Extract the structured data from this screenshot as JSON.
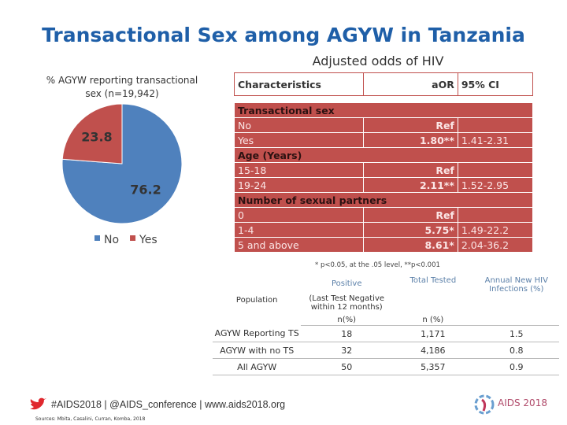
{
  "title": "Transactional Sex among AGYW in Tanzania",
  "chart_data": {
    "type": "pie",
    "title": "% AGYW reporting transactional sex (n=19,942)",
    "categories": [
      "No",
      "Yes"
    ],
    "values": [
      76.2,
      23.8
    ],
    "colors": [
      "#4f81bd",
      "#c0504d"
    ],
    "legend": "bottom"
  },
  "odds_table": {
    "title": "Adjusted odds of HIV",
    "header": [
      "Characteristics",
      "aOR",
      "95% CI"
    ],
    "sections": [
      {
        "heading": "Transactional sex",
        "rows": [
          [
            "No",
            "Ref",
            ""
          ],
          [
            "Yes",
            "1.80**",
            "1.41-2.31"
          ]
        ]
      },
      {
        "heading": "Age (Years)",
        "rows": [
          [
            "15-18",
            "Ref",
            ""
          ],
          [
            "19-24",
            "2.11**",
            "1.52-2.95"
          ]
        ]
      },
      {
        "heading": "Number of sexual partners",
        "rows": [
          [
            "0",
            "Ref",
            ""
          ],
          [
            "1-4",
            "5.75*",
            "1.49-22.2"
          ],
          [
            "5 and above",
            "8.61*",
            "2.04-36.2"
          ]
        ]
      }
    ],
    "footnote": "* p<0.05, at the .05 level, **p<0.001"
  },
  "population_table": {
    "population": "Population",
    "positive": "Positive",
    "positive_note": "(Last Test Negative within 12 months)",
    "positive_unit": "n(%)",
    "total": "Total Tested",
    "total_unit": "n (%)",
    "annual": "Annual New HIV Infections (%)",
    "rows": [
      [
        "AGYW Reporting TS",
        18,
        "1,171",
        1.5
      ],
      [
        "AGYW with no TS",
        32,
        "4,186",
        0.8
      ],
      [
        "All AGYW",
        50,
        "5,357",
        0.9
      ]
    ]
  },
  "footer": {
    "links": "#AIDS2018 | @AIDS_conference | www.aids2018.org",
    "sources": "Sources: Mbita, Casalini, Curran, Komba, 2018",
    "logo": "AIDS 2018"
  }
}
